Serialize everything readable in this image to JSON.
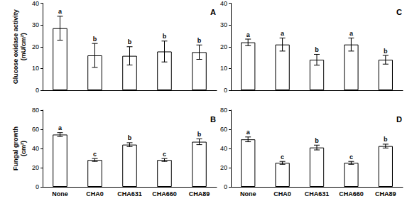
{
  "chart_data": [
    {
      "type": "bar",
      "title": "A",
      "ylabel": "Glucose oxidase activity\n(mU/cm²)",
      "categories": [
        null,
        null,
        null,
        null,
        null
      ],
      "values": [
        28.5,
        16,
        15.8,
        17.8,
        17.5
      ],
      "errors": [
        5.5,
        5.5,
        4.2,
        4.8,
        3.3
      ],
      "annotations": [
        "a",
        "b",
        "b",
        "b",
        "b"
      ],
      "color": "#ffffff",
      "ylim": [
        0,
        40
      ],
      "yticks": [
        0,
        10,
        20,
        30,
        40
      ],
      "grid": false,
      "tick_labels": "y"
    },
    {
      "type": "bar",
      "title": "B",
      "ylabel": "Fungal growth\n(cm²)",
      "categories": [
        "None",
        "CHA0",
        "CHA631",
        "CHA660",
        "CHA89"
      ],
      "values": [
        54.5,
        28,
        44,
        28,
        47
      ],
      "errors": [
        2,
        1.5,
        2,
        1.5,
        3
      ],
      "annotations": [
        "a",
        "c",
        "b",
        "c",
        "b"
      ],
      "color": "#ffffff",
      "ylim": [
        0,
        80
      ],
      "yticks": [
        0,
        20,
        40,
        60,
        80
      ],
      "grid": false
    },
    {
      "type": "bar",
      "title": "C",
      "categories": [
        null,
        null,
        null,
        null,
        null
      ],
      "values": [
        22,
        21,
        14,
        21,
        14
      ],
      "errors": [
        1.5,
        3,
        2.5,
        3,
        2
      ],
      "annotations": [
        "a",
        "a",
        "b",
        "a",
        "b"
      ],
      "color": "#ffffff",
      "ylim": [
        0,
        40
      ],
      "yticks": [
        0,
        10,
        20,
        30,
        40
      ],
      "grid": false,
      "tick_labels": "y"
    },
    {
      "type": "bar",
      "title": "D",
      "categories": [
        "None",
        "CHA0",
        "CHA631",
        "CHA660",
        "CHA89"
      ],
      "values": [
        49.5,
        25,
        41,
        25,
        42.5
      ],
      "errors": [
        2.5,
        1.5,
        2.5,
        1.5,
        2
      ],
      "annotations": [
        "a",
        "c",
        "b",
        "c",
        "b"
      ],
      "color": "#ffffff",
      "ylim": [
        0,
        80
      ],
      "yticks": [
        0,
        20,
        40,
        60,
        80
      ],
      "grid": false
    }
  ]
}
